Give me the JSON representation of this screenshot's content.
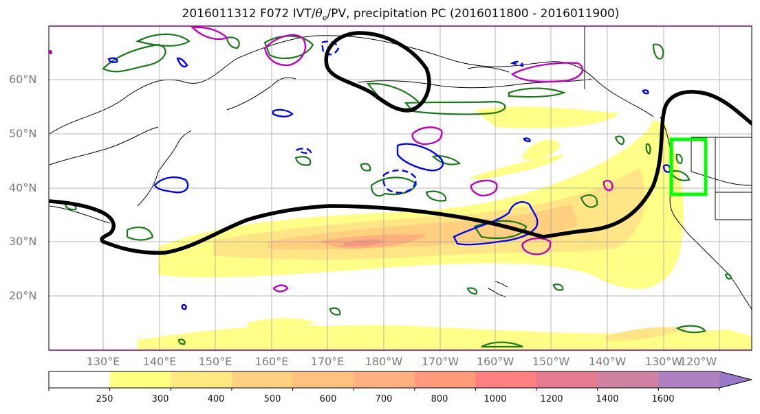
{
  "title": {
    "prefix": "2016011312 F072 IVT/",
    "theta_symbol": "θ",
    "theta_subscript": "e",
    "suffix": "/PV, precipitation PC (2016011800 - 2016011900)"
  },
  "lat_labels": [
    "60°N",
    "50°N",
    "40°N",
    "30°N",
    "20°N"
  ],
  "lon_labels": [
    "130°E",
    "140°E",
    "150°E",
    "160°E",
    "170°E",
    "180°W",
    "170°W",
    "160°W",
    "150°W",
    "140°W",
    "130°W",
    "120°W"
  ],
  "colorbar": {
    "labels": [
      "250",
      "300",
      "400",
      "500",
      "600",
      "700",
      "800",
      "1000",
      "1200",
      "1400",
      "1600"
    ],
    "colors": [
      "#ffffff",
      "#ffff80",
      "#ffe880",
      "#ffd080",
      "#ffc080",
      "#ffb080",
      "#ff9a7a",
      "#ff8080",
      "#e67a90",
      "#d080a0",
      "#b080c0",
      "#9a78c8"
    ]
  },
  "map": {
    "ivt_color": "#ffd070",
    "precip_color": "#1a7a1a",
    "pv_pos_color": "#0000ff",
    "pv_neg_color": "#c000c0",
    "theta_color": "#000000",
    "region_box_color": "#00ff00"
  }
}
